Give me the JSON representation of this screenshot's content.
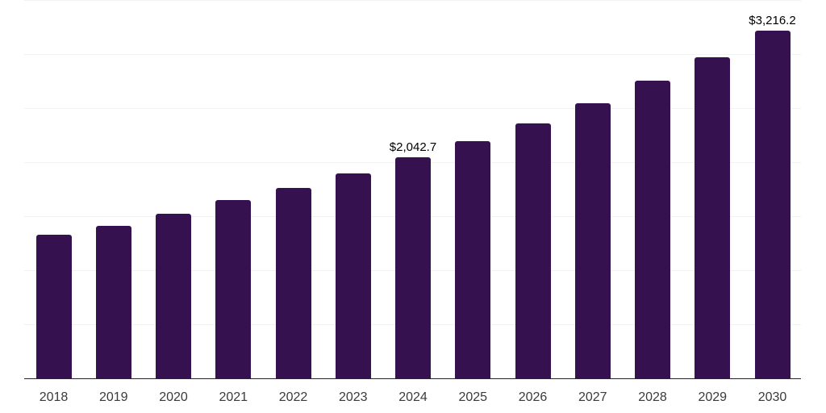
{
  "chart_data": {
    "type": "bar",
    "title": "",
    "xlabel": "",
    "ylabel": "",
    "categories": [
      "2018",
      "2019",
      "2020",
      "2021",
      "2022",
      "2023",
      "2024",
      "2025",
      "2026",
      "2027",
      "2028",
      "2029",
      "2030"
    ],
    "values": [
      1330,
      1410,
      1525,
      1650,
      1760,
      1895,
      2042.7,
      2195,
      2360,
      2545,
      2755,
      2970,
      3216.2
    ],
    "annotations": [
      {
        "category": "2024",
        "text": "$2,042.7"
      },
      {
        "category": "2030",
        "text": "$3,216.2"
      }
    ],
    "ylim": [
      0,
      3500
    ],
    "gridline_step": 500,
    "grid": "horizontal-only",
    "legend": "none",
    "y_axis_labels_visible": false,
    "colors": {
      "bar": "#35124F",
      "gridline": "#F2F2F2",
      "axis_line": "#262626",
      "tick_label": "#3A3A3A",
      "value_label": "#000000",
      "background": "#FFFFFF"
    }
  }
}
